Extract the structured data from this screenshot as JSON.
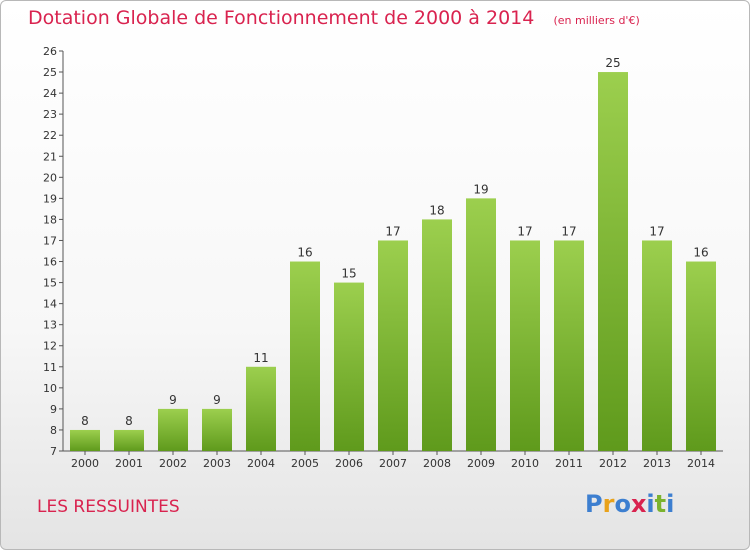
{
  "header": {
    "title": "Dotation Globale de Fonctionnement de 2000 à 2014",
    "unit": "(en milliers d'€)"
  },
  "footer": {
    "place": "LES RESSUINTES",
    "logo": "Proxiti"
  },
  "colors": {
    "title": "#d9234f",
    "bar_top": "#9ccf4e",
    "bar_bottom": "#5f9a1c",
    "logo_letters": [
      "#3d7fd0",
      "#e9a21a",
      "#3d7fd0",
      "#d9234f",
      "#3d7fd0",
      "#7bb32e",
      "#3d7fd0"
    ]
  },
  "chart_data": {
    "type": "bar",
    "title": "Dotation Globale de Fonctionnement de 2000 à 2014",
    "xlabel": "",
    "ylabel": "",
    "categories": [
      "2000",
      "2001",
      "2002",
      "2003",
      "2004",
      "2005",
      "2006",
      "2007",
      "2008",
      "2009",
      "2010",
      "2011",
      "2012",
      "2013",
      "2014"
    ],
    "values": [
      8,
      8,
      9,
      9,
      11,
      16,
      15,
      17,
      18,
      19,
      17,
      17,
      25,
      17,
      16
    ],
    "ylim": [
      7,
      26
    ],
    "yticks": [
      7,
      8,
      9,
      10,
      11,
      12,
      13,
      14,
      15,
      16,
      17,
      18,
      19,
      20,
      21,
      22,
      23,
      24,
      25,
      26
    ],
    "grid": false,
    "legend": "none"
  }
}
